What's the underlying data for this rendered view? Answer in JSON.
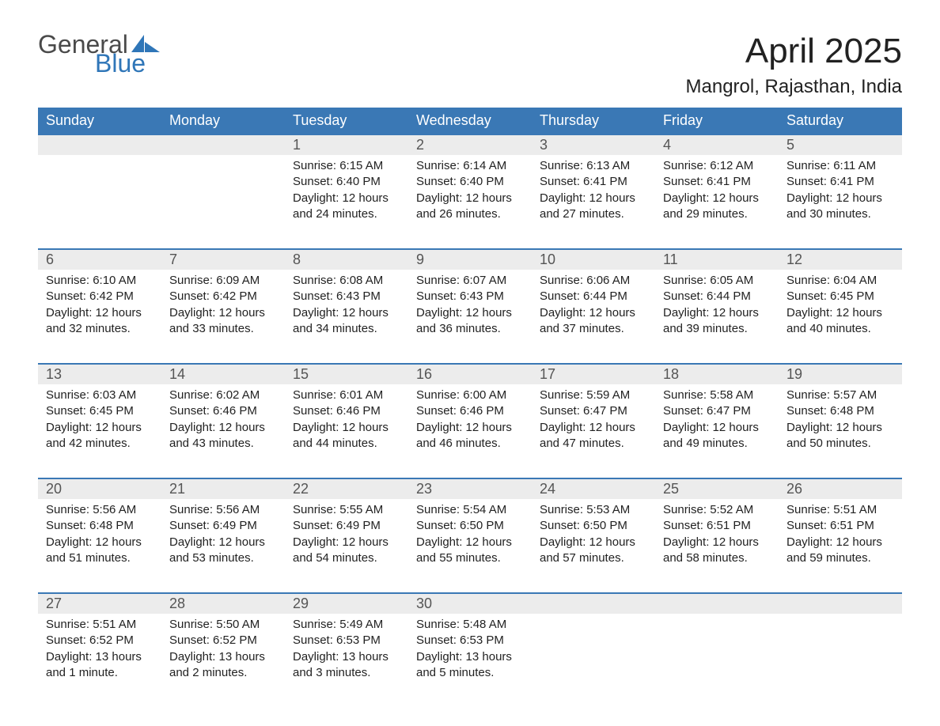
{
  "logo": {
    "general": "General",
    "blue": "Blue"
  },
  "title": "April 2025",
  "subtitle": "Mangrol, Rajasthan, India",
  "colors": {
    "header_bg": "#3a78b5",
    "header_text": "#ffffff",
    "row_border": "#3a78b5",
    "daynum_bg": "#ececec",
    "daynum_text": "#555555",
    "body_text": "#222222",
    "logo_general": "#4a4a4a",
    "logo_blue": "#2f76b8",
    "page_bg": "#ffffff"
  },
  "calendar": {
    "type": "table",
    "columns": [
      "Sunday",
      "Monday",
      "Tuesday",
      "Wednesday",
      "Thursday",
      "Friday",
      "Saturday"
    ],
    "weeks": [
      [
        {
          "day": "",
          "sunrise": "",
          "sunset": "",
          "daylight": ""
        },
        {
          "day": "",
          "sunrise": "",
          "sunset": "",
          "daylight": ""
        },
        {
          "day": "1",
          "sunrise": "Sunrise: 6:15 AM",
          "sunset": "Sunset: 6:40 PM",
          "daylight": "Daylight: 12 hours and 24 minutes."
        },
        {
          "day": "2",
          "sunrise": "Sunrise: 6:14 AM",
          "sunset": "Sunset: 6:40 PM",
          "daylight": "Daylight: 12 hours and 26 minutes."
        },
        {
          "day": "3",
          "sunrise": "Sunrise: 6:13 AM",
          "sunset": "Sunset: 6:41 PM",
          "daylight": "Daylight: 12 hours and 27 minutes."
        },
        {
          "day": "4",
          "sunrise": "Sunrise: 6:12 AM",
          "sunset": "Sunset: 6:41 PM",
          "daylight": "Daylight: 12 hours and 29 minutes."
        },
        {
          "day": "5",
          "sunrise": "Sunrise: 6:11 AM",
          "sunset": "Sunset: 6:41 PM",
          "daylight": "Daylight: 12 hours and 30 minutes."
        }
      ],
      [
        {
          "day": "6",
          "sunrise": "Sunrise: 6:10 AM",
          "sunset": "Sunset: 6:42 PM",
          "daylight": "Daylight: 12 hours and 32 minutes."
        },
        {
          "day": "7",
          "sunrise": "Sunrise: 6:09 AM",
          "sunset": "Sunset: 6:42 PM",
          "daylight": "Daylight: 12 hours and 33 minutes."
        },
        {
          "day": "8",
          "sunrise": "Sunrise: 6:08 AM",
          "sunset": "Sunset: 6:43 PM",
          "daylight": "Daylight: 12 hours and 34 minutes."
        },
        {
          "day": "9",
          "sunrise": "Sunrise: 6:07 AM",
          "sunset": "Sunset: 6:43 PM",
          "daylight": "Daylight: 12 hours and 36 minutes."
        },
        {
          "day": "10",
          "sunrise": "Sunrise: 6:06 AM",
          "sunset": "Sunset: 6:44 PM",
          "daylight": "Daylight: 12 hours and 37 minutes."
        },
        {
          "day": "11",
          "sunrise": "Sunrise: 6:05 AM",
          "sunset": "Sunset: 6:44 PM",
          "daylight": "Daylight: 12 hours and 39 minutes."
        },
        {
          "day": "12",
          "sunrise": "Sunrise: 6:04 AM",
          "sunset": "Sunset: 6:45 PM",
          "daylight": "Daylight: 12 hours and 40 minutes."
        }
      ],
      [
        {
          "day": "13",
          "sunrise": "Sunrise: 6:03 AM",
          "sunset": "Sunset: 6:45 PM",
          "daylight": "Daylight: 12 hours and 42 minutes."
        },
        {
          "day": "14",
          "sunrise": "Sunrise: 6:02 AM",
          "sunset": "Sunset: 6:46 PM",
          "daylight": "Daylight: 12 hours and 43 minutes."
        },
        {
          "day": "15",
          "sunrise": "Sunrise: 6:01 AM",
          "sunset": "Sunset: 6:46 PM",
          "daylight": "Daylight: 12 hours and 44 minutes."
        },
        {
          "day": "16",
          "sunrise": "Sunrise: 6:00 AM",
          "sunset": "Sunset: 6:46 PM",
          "daylight": "Daylight: 12 hours and 46 minutes."
        },
        {
          "day": "17",
          "sunrise": "Sunrise: 5:59 AM",
          "sunset": "Sunset: 6:47 PM",
          "daylight": "Daylight: 12 hours and 47 minutes."
        },
        {
          "day": "18",
          "sunrise": "Sunrise: 5:58 AM",
          "sunset": "Sunset: 6:47 PM",
          "daylight": "Daylight: 12 hours and 49 minutes."
        },
        {
          "day": "19",
          "sunrise": "Sunrise: 5:57 AM",
          "sunset": "Sunset: 6:48 PM",
          "daylight": "Daylight: 12 hours and 50 minutes."
        }
      ],
      [
        {
          "day": "20",
          "sunrise": "Sunrise: 5:56 AM",
          "sunset": "Sunset: 6:48 PM",
          "daylight": "Daylight: 12 hours and 51 minutes."
        },
        {
          "day": "21",
          "sunrise": "Sunrise: 5:56 AM",
          "sunset": "Sunset: 6:49 PM",
          "daylight": "Daylight: 12 hours and 53 minutes."
        },
        {
          "day": "22",
          "sunrise": "Sunrise: 5:55 AM",
          "sunset": "Sunset: 6:49 PM",
          "daylight": "Daylight: 12 hours and 54 minutes."
        },
        {
          "day": "23",
          "sunrise": "Sunrise: 5:54 AM",
          "sunset": "Sunset: 6:50 PM",
          "daylight": "Daylight: 12 hours and 55 minutes."
        },
        {
          "day": "24",
          "sunrise": "Sunrise: 5:53 AM",
          "sunset": "Sunset: 6:50 PM",
          "daylight": "Daylight: 12 hours and 57 minutes."
        },
        {
          "day": "25",
          "sunrise": "Sunrise: 5:52 AM",
          "sunset": "Sunset: 6:51 PM",
          "daylight": "Daylight: 12 hours and 58 minutes."
        },
        {
          "day": "26",
          "sunrise": "Sunrise: 5:51 AM",
          "sunset": "Sunset: 6:51 PM",
          "daylight": "Daylight: 12 hours and 59 minutes."
        }
      ],
      [
        {
          "day": "27",
          "sunrise": "Sunrise: 5:51 AM",
          "sunset": "Sunset: 6:52 PM",
          "daylight": "Daylight: 13 hours and 1 minute."
        },
        {
          "day": "28",
          "sunrise": "Sunrise: 5:50 AM",
          "sunset": "Sunset: 6:52 PM",
          "daylight": "Daylight: 13 hours and 2 minutes."
        },
        {
          "day": "29",
          "sunrise": "Sunrise: 5:49 AM",
          "sunset": "Sunset: 6:53 PM",
          "daylight": "Daylight: 13 hours and 3 minutes."
        },
        {
          "day": "30",
          "sunrise": "Sunrise: 5:48 AM",
          "sunset": "Sunset: 6:53 PM",
          "daylight": "Daylight: 13 hours and 5 minutes."
        },
        {
          "day": "",
          "sunrise": "",
          "sunset": "",
          "daylight": ""
        },
        {
          "day": "",
          "sunrise": "",
          "sunset": "",
          "daylight": ""
        },
        {
          "day": "",
          "sunrise": "",
          "sunset": "",
          "daylight": ""
        }
      ]
    ]
  }
}
